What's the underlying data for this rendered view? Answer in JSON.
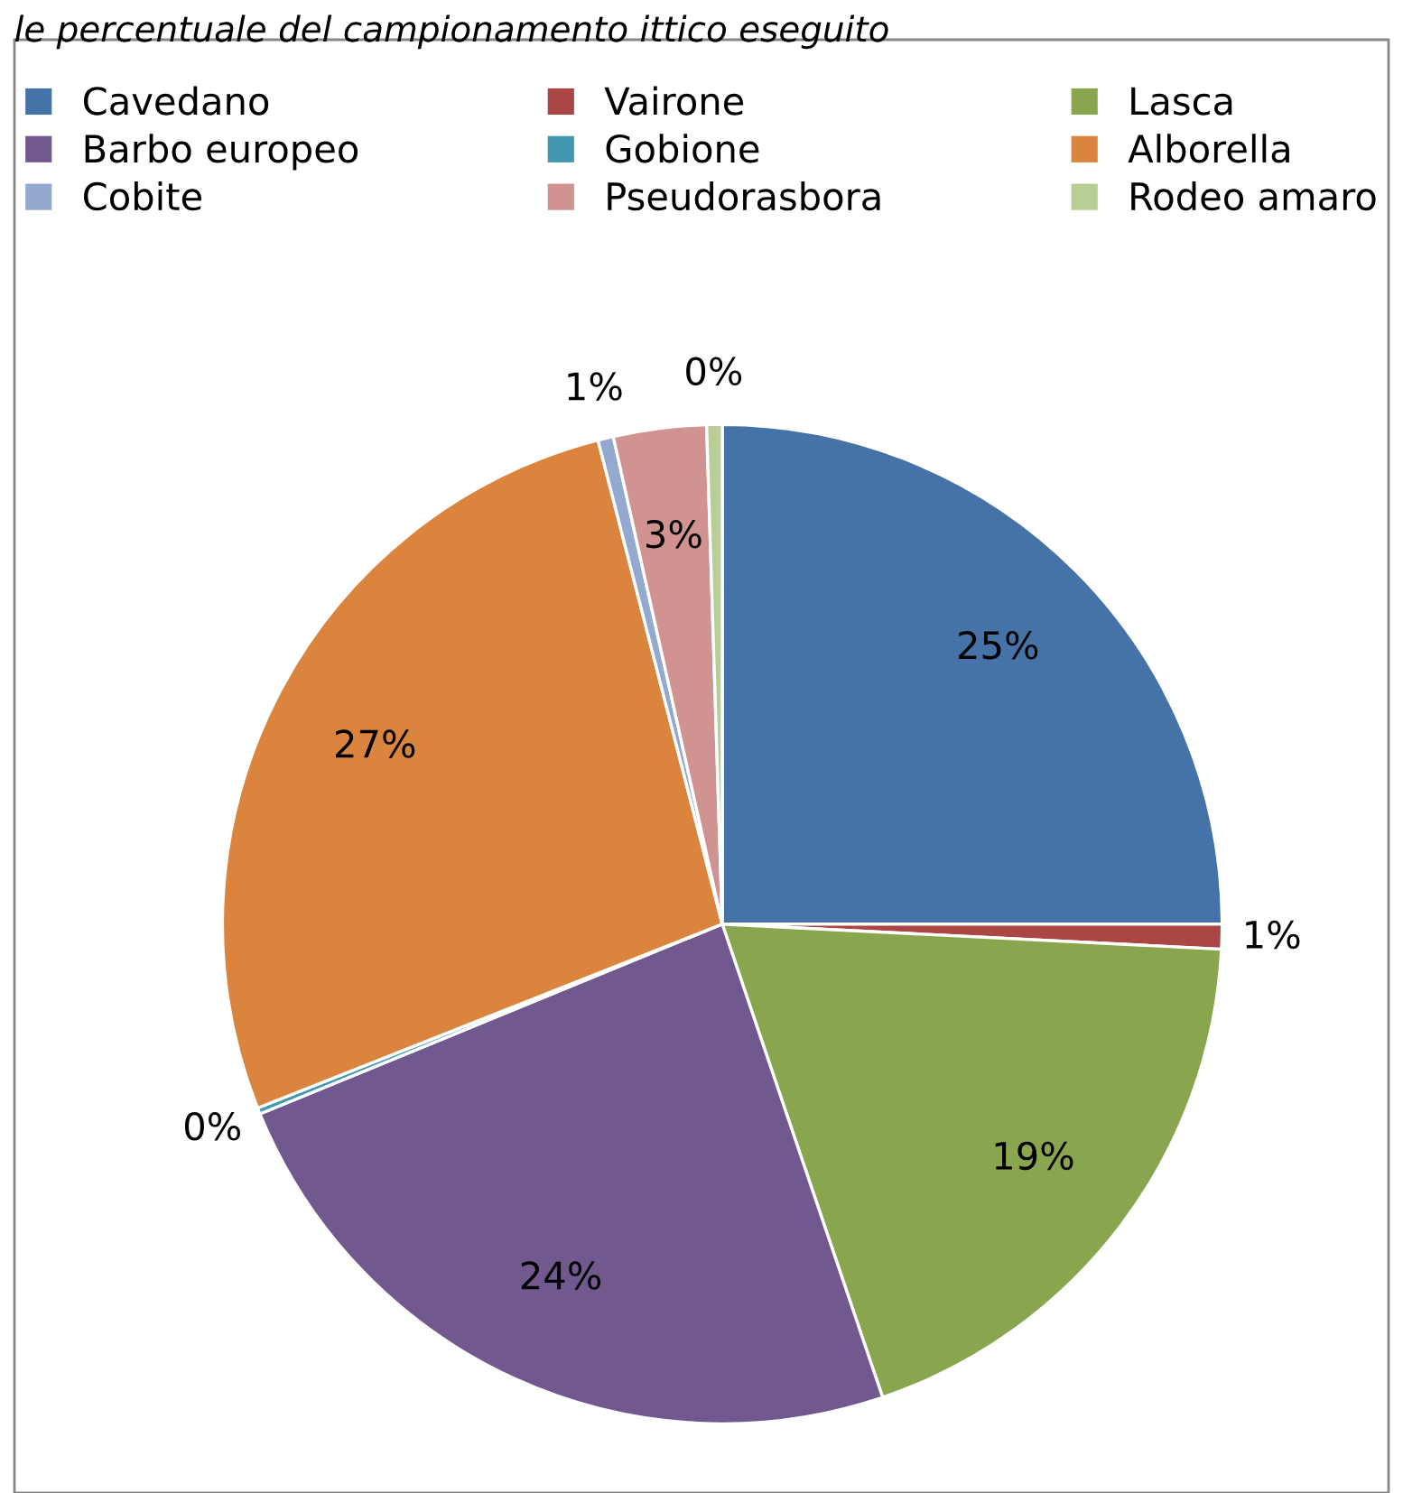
{
  "chart_data": {
    "type": "pie",
    "title": "le percentuale del campionamento ittico eseguito",
    "categories": [
      "Cavedano",
      "Vairone",
      "Lasca",
      "Barbo europeo",
      "Gobione",
      "Alborella",
      "Cobite",
      "Pseudorasbora",
      "Rodeo amaro"
    ],
    "values": [
      25,
      0.8,
      19,
      24,
      0.2,
      27,
      0.5,
      3,
      0.5
    ],
    "value_labels": [
      "25%",
      "1%",
      "19%",
      "24%",
      "0%",
      "27%",
      "1%",
      "3%",
      "0%"
    ],
    "colors": [
      "#4572a7",
      "#aa4643",
      "#89a54e",
      "#71588f",
      "#4198af",
      "#db843d",
      "#93a9cf",
      "#d19392",
      "#b9cd96"
    ],
    "legend": "top"
  }
}
